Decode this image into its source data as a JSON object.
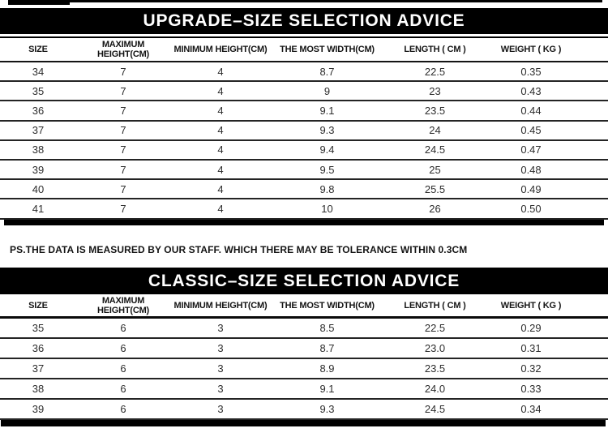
{
  "colors": {
    "bar_background": "#000000",
    "bar_text": "#ffffff",
    "rule": "#1a1a1a",
    "body_text": "#2d2d2d"
  },
  "tables": [
    {
      "id": "upgrade",
      "title": "UPGRADE–SIZE SELECTION ADVICE",
      "headers": [
        "SIZE",
        "MAXIMUM HEIGHT(CM)",
        "MINIMUM HEIGHT(CM)",
        "THE MOST WIDTH(CM)",
        "LENGTH ( CM )",
        "WEIGHT ( KG )"
      ],
      "rows": [
        [
          "34",
          "7",
          "4",
          "8.7",
          "22.5",
          "0.35"
        ],
        [
          "35",
          "7",
          "4",
          "9",
          "23",
          "0.43"
        ],
        [
          "36",
          "7",
          "4",
          "9.1",
          "23.5",
          "0.44"
        ],
        [
          "37",
          "7",
          "4",
          "9.3",
          "24",
          "0.45"
        ],
        [
          "38",
          "7",
          "4",
          "9.4",
          "24.5",
          "0.47"
        ],
        [
          "39",
          "7",
          "4",
          "9.5",
          "25",
          "0.48"
        ],
        [
          "40",
          "7",
          "4",
          "9.8",
          "25.5",
          "0.49"
        ],
        [
          "41",
          "7",
          "4",
          "10",
          "26",
          "0.50"
        ]
      ]
    },
    {
      "id": "classic",
      "title": "CLASSIC–SIZE SELECTION ADVICE",
      "headers": [
        "SIZE",
        "MAXIMUM HEIGHT(CM)",
        "MINIMUM HEIGHT(CM)",
        "THE MOST WIDTH(CM)",
        "LENGTH ( CM )",
        "WEIGHT ( KG )"
      ],
      "rows": [
        [
          "35",
          "6",
          "3",
          "8.5",
          "22.5",
          "0.29"
        ],
        [
          "36",
          "6",
          "3",
          "8.7",
          "23.0",
          "0.31"
        ],
        [
          "37",
          "6",
          "3",
          "8.9",
          "23.5",
          "0.32"
        ],
        [
          "38",
          "6",
          "3",
          "9.1",
          "24.0",
          "0.33"
        ],
        [
          "39",
          "6",
          "3",
          "9.3",
          "24.5",
          "0.34"
        ]
      ]
    }
  ],
  "note": "PS.THE DATA IS MEASURED BY OUR STAFF. WHICH THERE MAY BE TOLERANCE WITHIN 0.3CM"
}
